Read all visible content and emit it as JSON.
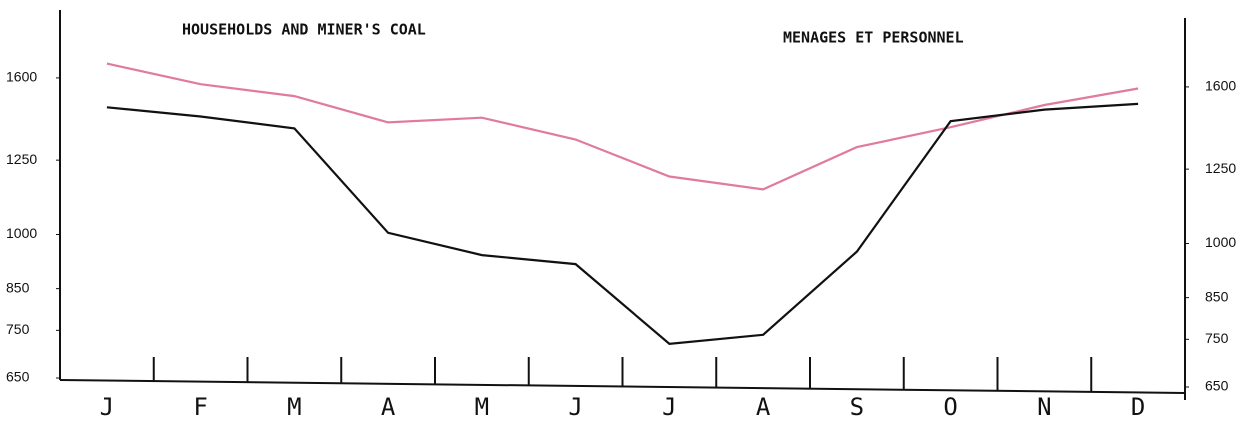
{
  "chart_data": {
    "type": "line",
    "annotations": [
      "HOUSEHOLDS AND MINER'S COAL",
      "MENAGES ET PERSONNEL"
    ],
    "categories": [
      "J",
      "F",
      "M",
      "A",
      "M",
      "J",
      "J",
      "A",
      "S",
      "O",
      "N",
      "D"
    ],
    "series": [
      {
        "color": "#e07b9c",
        "values": [
          1670,
          1570,
          1515,
          1400,
          1420,
          1330,
          1190,
          1145,
          1300,
          1380,
          1475,
          1550
        ]
      },
      {
        "color": "#111111",
        "values": [
          1465,
          1425,
          1375,
          1005,
          940,
          915,
          720,
          740,
          950,
          1405,
          1455,
          1480
        ]
      }
    ],
    "ylim": [
      650,
      1950
    ],
    "yticks": [
      650,
      750,
      850,
      1000,
      1250,
      1600
    ],
    "y2lim": [
      650,
      1950
    ],
    "y2ticks": [
      650,
      750,
      850,
      1000,
      1250,
      1600
    ],
    "log_scale": true,
    "grid": false
  }
}
